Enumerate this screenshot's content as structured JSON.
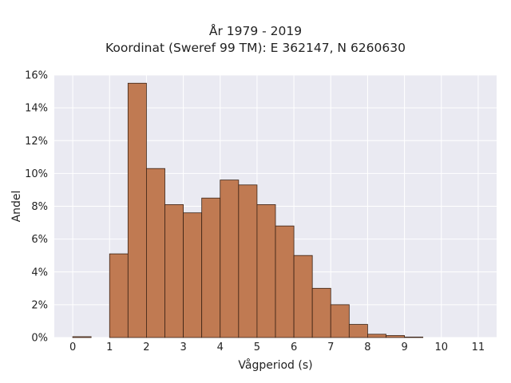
{
  "chart_data": {
    "type": "bar",
    "title_lines": [
      "År 1979 - 2019",
      "Koordinat (Sweref 99 TM): E 362147, N 6260630"
    ],
    "xlabel": "Vågperiod (s)",
    "ylabel": "Andel",
    "bin_width": 0.5,
    "bins": [
      {
        "x0": 0.0,
        "x1": 0.5,
        "value": 0.05
      },
      {
        "x0": 0.5,
        "x1": 1.0,
        "value": 0.0
      },
      {
        "x0": 1.0,
        "x1": 1.5,
        "value": 5.1
      },
      {
        "x0": 1.5,
        "x1": 2.0,
        "value": 15.5
      },
      {
        "x0": 2.0,
        "x1": 2.5,
        "value": 10.3
      },
      {
        "x0": 2.5,
        "x1": 3.0,
        "value": 8.1
      },
      {
        "x0": 3.0,
        "x1": 3.5,
        "value": 7.6
      },
      {
        "x0": 3.5,
        "x1": 4.0,
        "value": 8.5
      },
      {
        "x0": 4.0,
        "x1": 4.5,
        "value": 9.6
      },
      {
        "x0": 4.5,
        "x1": 5.0,
        "value": 9.3
      },
      {
        "x0": 5.0,
        "x1": 5.5,
        "value": 8.1
      },
      {
        "x0": 5.5,
        "x1": 6.0,
        "value": 6.8
      },
      {
        "x0": 6.0,
        "x1": 6.5,
        "value": 5.0
      },
      {
        "x0": 6.5,
        "x1": 7.0,
        "value": 3.0
      },
      {
        "x0": 7.0,
        "x1": 7.5,
        "value": 2.0
      },
      {
        "x0": 7.5,
        "x1": 8.0,
        "value": 0.8
      },
      {
        "x0": 8.0,
        "x1": 8.5,
        "value": 0.2
      },
      {
        "x0": 8.5,
        "x1": 9.0,
        "value": 0.12
      },
      {
        "x0": 9.0,
        "x1": 9.5,
        "value": 0.03
      }
    ],
    "xlim": [
      -0.5,
      11.5
    ],
    "ylim": [
      0,
      16
    ],
    "x_ticks": [
      0,
      1,
      2,
      3,
      4,
      5,
      6,
      7,
      8,
      9,
      10,
      11
    ],
    "y_ticks": [
      0,
      2,
      4,
      6,
      8,
      10,
      12,
      14,
      16
    ],
    "y_tick_labels": [
      "0%",
      "2%",
      "4%",
      "6%",
      "8%",
      "10%",
      "12%",
      "14%",
      "16%"
    ],
    "grid": true,
    "colors": {
      "bar_fill": "#c07a52",
      "bar_edge": "#3a2214",
      "plot_bg": "#eaeaf2",
      "grid": "#ffffff"
    }
  }
}
